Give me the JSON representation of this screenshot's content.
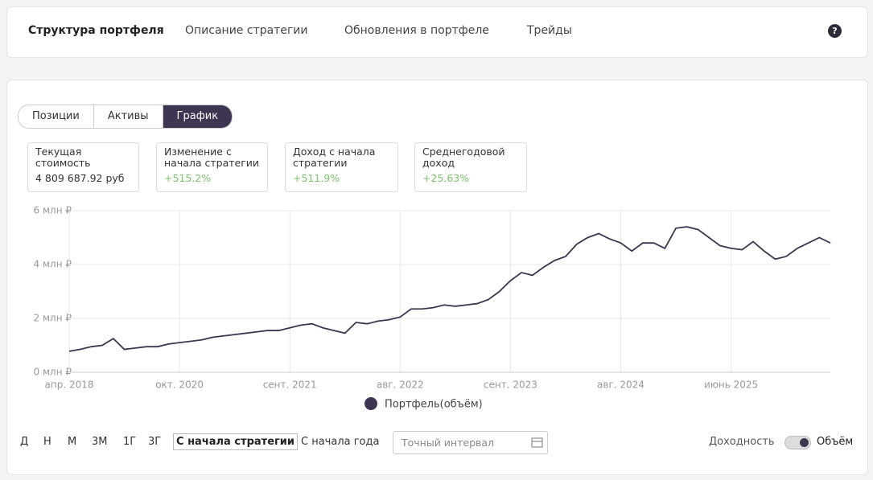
{
  "nav": {
    "tabs": [
      "Структура портфеля",
      "Описание стратегии",
      "Обновления в портфеле",
      "Трейды"
    ],
    "help": "?"
  },
  "view_tabs": [
    "Позиции",
    "Активы",
    "График"
  ],
  "cards": [
    {
      "label": "Текущая стоимость",
      "value": "4 809 687.92 руб"
    },
    {
      "label": "Изменение с начала стратегии",
      "value": "+515.2%"
    },
    {
      "label": "Доход с начала стратегии",
      "value": "+511.9%"
    },
    {
      "label": "Среднегодовой доход",
      "value": "+25.63%"
    }
  ],
  "chart_data": {
    "type": "line",
    "categories": [
      "апр. 2018",
      null,
      null,
      null,
      null,
      null,
      null,
      null,
      null,
      null,
      "окт. 2020",
      null,
      null,
      null,
      null,
      null,
      null,
      null,
      null,
      null,
      "сент. 2021",
      null,
      null,
      null,
      null,
      null,
      null,
      null,
      null,
      null,
      "авг. 2022",
      null,
      null,
      null,
      null,
      null,
      null,
      null,
      null,
      null,
      "сент. 2023",
      null,
      null,
      null,
      null,
      null,
      null,
      null,
      null,
      null,
      "авг. 2024",
      null,
      null,
      null,
      null,
      null,
      null,
      null,
      null,
      null,
      "июнь 2025",
      null,
      null,
      null,
      null,
      null,
      null,
      null,
      null,
      null
    ],
    "series": [
      {
        "name": "Портфель(объём)",
        "color": "#3d3552",
        "values": [
          0.78,
          0.85,
          0.95,
          1.0,
          1.25,
          0.85,
          0.9,
          0.95,
          0.95,
          1.05,
          1.1,
          1.15,
          1.2,
          1.3,
          1.35,
          1.4,
          1.45,
          1.5,
          1.55,
          1.55,
          1.65,
          1.75,
          1.8,
          1.65,
          1.55,
          1.45,
          1.85,
          1.8,
          1.9,
          1.95,
          2.05,
          2.35,
          2.35,
          2.4,
          2.5,
          2.45,
          2.5,
          2.55,
          2.7,
          3.0,
          3.4,
          3.7,
          3.6,
          3.9,
          4.15,
          4.3,
          4.75,
          5.0,
          5.15,
          4.95,
          4.8,
          4.5,
          4.8,
          4.8,
          4.6,
          5.35,
          5.4,
          5.3,
          5.0,
          4.7,
          4.6,
          4.55,
          4.85,
          4.5,
          4.2,
          4.3,
          4.6,
          4.8,
          5.0,
          4.8
        ]
      }
    ],
    "ylim": [
      0,
      6
    ],
    "yticks": [
      {
        "value": 0,
        "label": "0 млн ₽"
      },
      {
        "value": 2,
        "label": "2 млн ₽"
      },
      {
        "value": 4,
        "label": "4 млн ₽"
      },
      {
        "value": 6,
        "label": "6 млн ₽"
      }
    ],
    "grid": true
  },
  "periods": [
    "Д",
    "Н",
    "М",
    "3М",
    "1Г",
    "3Г",
    "С начала стратегии",
    "С начала года"
  ],
  "date_input": "Точный интервал",
  "toggle": {
    "left": "Доходность",
    "right": "Объём"
  }
}
